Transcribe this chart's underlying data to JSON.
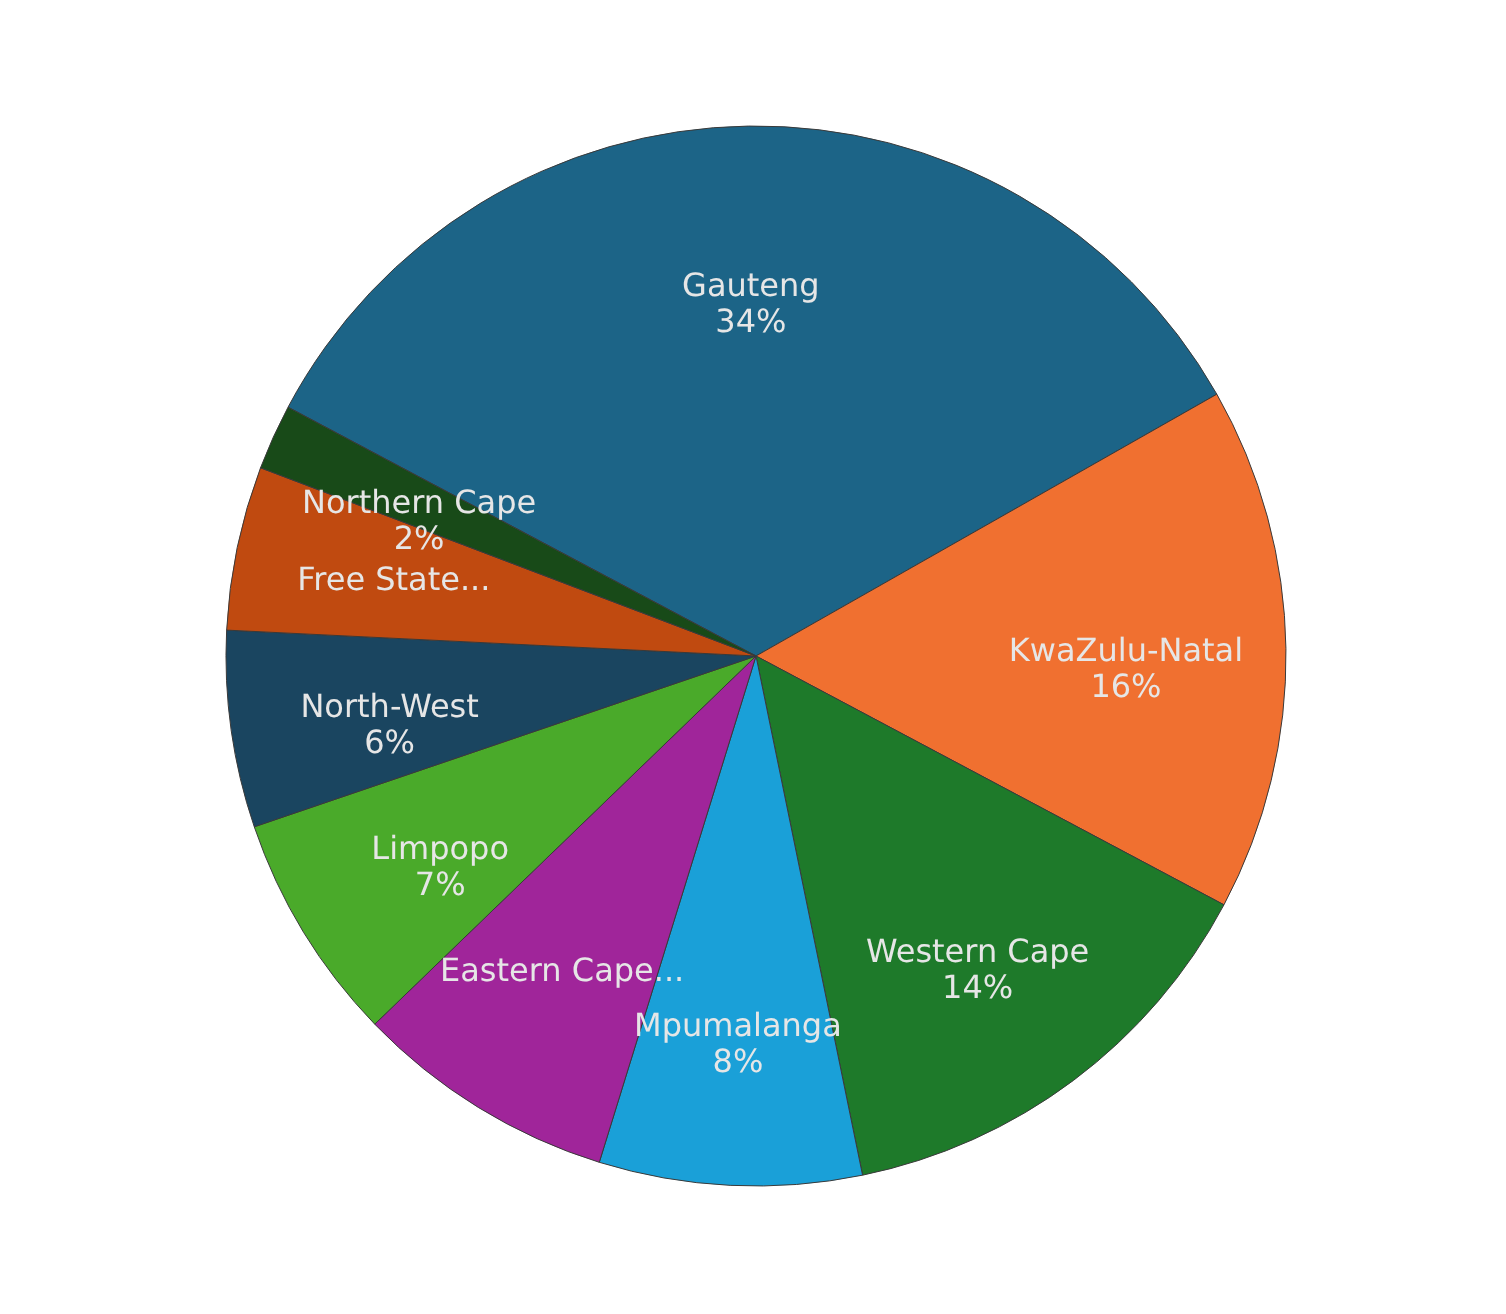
{
  "chart_data": {
    "type": "pie",
    "categories": [
      "Gauteng",
      "KwaZulu-Natal",
      "Western Cape",
      "Mpumalanga",
      "Eastern Cape...",
      "Limpopo",
      "North-West",
      "Free State...",
      "Northern Cape"
    ],
    "values": [
      34,
      16,
      14,
      8,
      8,
      7,
      6,
      5,
      2
    ],
    "value_labels": [
      "34%",
      "16%",
      "14%",
      "8%",
      null,
      "7%",
      "6%",
      null,
      "2%"
    ],
    "colors": [
      "#1c6487",
      "#f07030",
      "#1e7a2a",
      "#1aa0d8",
      "#a0259a",
      "#4aaa2a",
      "#1a4560",
      "#c04a10",
      "#184a18"
    ],
    "legend": false
  }
}
